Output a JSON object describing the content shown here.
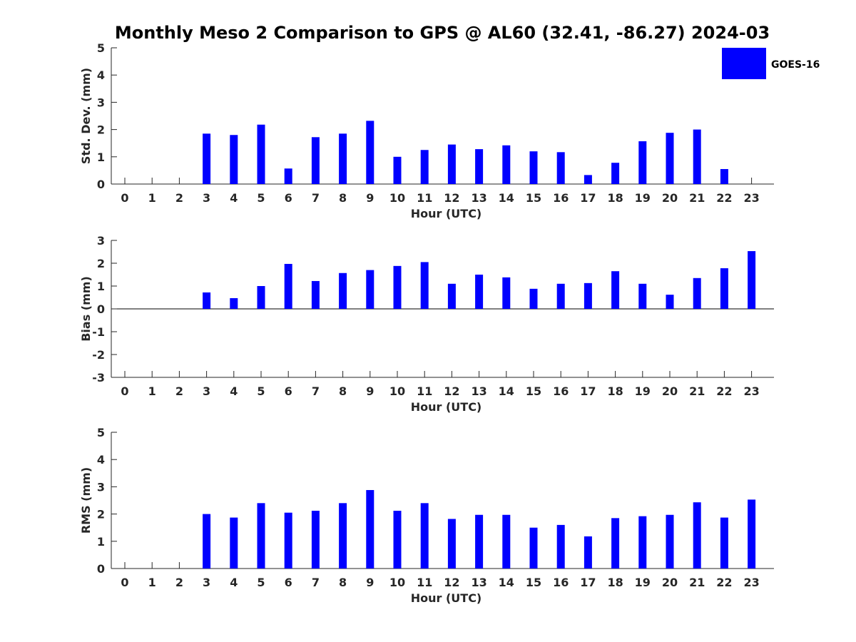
{
  "title": "Monthly Meso 2 Comparison to GPS @ AL60 (32.41, -86.27) 2024-03",
  "legend": {
    "label": "GOES-16",
    "color": "#0000ff"
  },
  "chart_data": [
    {
      "type": "bar",
      "id": "std",
      "xlabel": "Hour (UTC)",
      "ylabel": "Std. Dev. (mm)",
      "ylim": [
        0,
        5
      ],
      "yticks": [
        0,
        1,
        2,
        3,
        4,
        5
      ],
      "categories": [
        "0",
        "1",
        "2",
        "3",
        "4",
        "5",
        "6",
        "7",
        "8",
        "9",
        "10",
        "11",
        "12",
        "13",
        "14",
        "15",
        "16",
        "17",
        "18",
        "19",
        "20",
        "21",
        "22",
        "23"
      ],
      "series": [
        {
          "name": "GOES-16",
          "color": "#0000ff",
          "values": [
            null,
            null,
            null,
            1.85,
            1.8,
            2.18,
            0.57,
            1.72,
            1.85,
            2.32,
            1.0,
            1.25,
            1.45,
            1.28,
            1.42,
            1.2,
            1.17,
            0.33,
            0.78,
            1.57,
            1.88,
            2.0,
            0.55,
            null
          ]
        }
      ]
    },
    {
      "type": "bar",
      "id": "bias",
      "xlabel": "Hour (UTC)",
      "ylabel": "Bias (mm)",
      "ylim": [
        -3,
        3
      ],
      "yticks": [
        -3,
        -2,
        -1,
        0,
        1,
        2,
        3
      ],
      "categories": [
        "0",
        "1",
        "2",
        "3",
        "4",
        "5",
        "6",
        "7",
        "8",
        "9",
        "10",
        "11",
        "12",
        "13",
        "14",
        "15",
        "16",
        "17",
        "18",
        "19",
        "20",
        "21",
        "22",
        "23"
      ],
      "series": [
        {
          "name": "GOES-16",
          "color": "#0000ff",
          "values": [
            null,
            null,
            null,
            0.72,
            0.47,
            1.0,
            1.97,
            1.22,
            1.57,
            1.7,
            1.88,
            2.05,
            1.1,
            1.5,
            1.38,
            0.88,
            1.1,
            1.13,
            1.65,
            1.1,
            0.62,
            1.35,
            1.78,
            2.53
          ]
        }
      ]
    },
    {
      "type": "bar",
      "id": "rms",
      "xlabel": "Hour (UTC)",
      "ylabel": "RMS (mm)",
      "ylim": [
        0,
        5
      ],
      "yticks": [
        0,
        1,
        2,
        3,
        4,
        5
      ],
      "categories": [
        "0",
        "1",
        "2",
        "3",
        "4",
        "5",
        "6",
        "7",
        "8",
        "9",
        "10",
        "11",
        "12",
        "13",
        "14",
        "15",
        "16",
        "17",
        "18",
        "19",
        "20",
        "21",
        "22",
        "23"
      ],
      "series": [
        {
          "name": "GOES-16",
          "color": "#0000ff",
          "values": [
            null,
            null,
            null,
            2.0,
            1.87,
            2.4,
            2.05,
            2.12,
            2.4,
            2.88,
            2.12,
            2.4,
            1.82,
            1.97,
            1.97,
            1.5,
            1.6,
            1.18,
            1.85,
            1.92,
            1.97,
            2.43,
            1.87,
            2.53
          ]
        }
      ]
    }
  ]
}
